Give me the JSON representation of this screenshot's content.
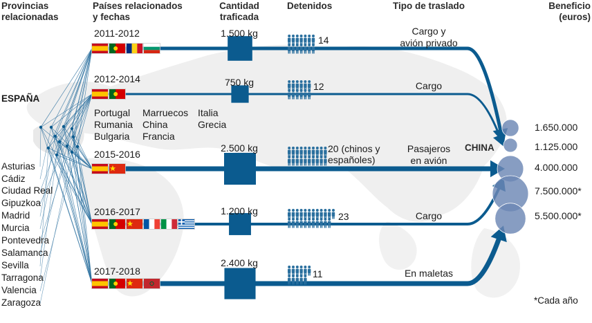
{
  "headers": {
    "provincias": [
      "Provincias",
      "relacionadas"
    ],
    "paises": [
      "Países relacionados",
      "y fechas"
    ],
    "cantidad": [
      "Cantidad",
      "traficada"
    ],
    "detenidos": "Detenidos",
    "traslado": "Tipo de traslado",
    "beneficio": [
      "Beneficio",
      "(euros)"
    ]
  },
  "espana": "ESPAÑA",
  "china": "CHINA",
  "provinces": [
    "Asturias",
    "Cádiz",
    "Ciudad Real",
    "Gipuzkoa",
    "Madrid",
    "Murcia",
    "Pontevedra",
    "Salamanca",
    "Sevilla",
    "Tarragona",
    "Valencia",
    "Zaragoza"
  ],
  "countries_list": [
    "Portugal",
    "Marruecos",
    "Italia",
    "Rumania",
    "China",
    "Grecia",
    "Bulgaria",
    "Francia"
  ],
  "routes": [
    {
      "period": "2011-2012",
      "quantity_label": "1.500 kg",
      "quantity_kg": 1500,
      "detained_label": "14",
      "detained": 14,
      "transport": [
        "Cargo y",
        "avión privado"
      ],
      "flags": [
        "es",
        "pt",
        "ro",
        "bg"
      ]
    },
    {
      "period": "2012-2014",
      "quantity_label": "750 kg",
      "quantity_kg": 750,
      "detained_label": "12",
      "detained": 12,
      "transport": [
        "Cargo"
      ],
      "flags": [
        "es",
        "pt"
      ]
    },
    {
      "period": "2015-2016",
      "quantity_label": "2.500 kg",
      "quantity_kg": 2500,
      "detained_label": "20 (chinos y españoles)",
      "detained": 20,
      "transport": [
        "Pasajeros",
        "en avión"
      ],
      "flags": [
        "es",
        "cn"
      ]
    },
    {
      "period": "2016-2017",
      "quantity_label": "1.200 kg",
      "quantity_kg": 1200,
      "detained_label": "23",
      "detained": 23,
      "transport": [
        "Cargo"
      ],
      "flags": [
        "es",
        "pt",
        "cn",
        "fr",
        "it",
        "gr"
      ]
    },
    {
      "period": "2017-2018",
      "quantity_label": "2.400 kg",
      "quantity_kg": 2400,
      "detained_label": "11",
      "detained": 11,
      "transport": [
        "En maletas"
      ],
      "flags": [
        "es",
        "pt",
        "cn",
        "ma"
      ]
    }
  ],
  "profits": [
    {
      "label": "1.650.000",
      "value": 1650000
    },
    {
      "label": "1.125.000",
      "value": 1125000
    },
    {
      "label": "4.000.000",
      "value": 4000000
    },
    {
      "label": "7.500.000*",
      "value": 7500000
    },
    {
      "label": "5.500.000*",
      "value": 5500000
    }
  ],
  "footnote": "*Cada año",
  "colors": {
    "route": "#0b5b8f",
    "bubble": "#6d88b5",
    "people": "#2a6f9e",
    "map": "#e9e9e9"
  }
}
